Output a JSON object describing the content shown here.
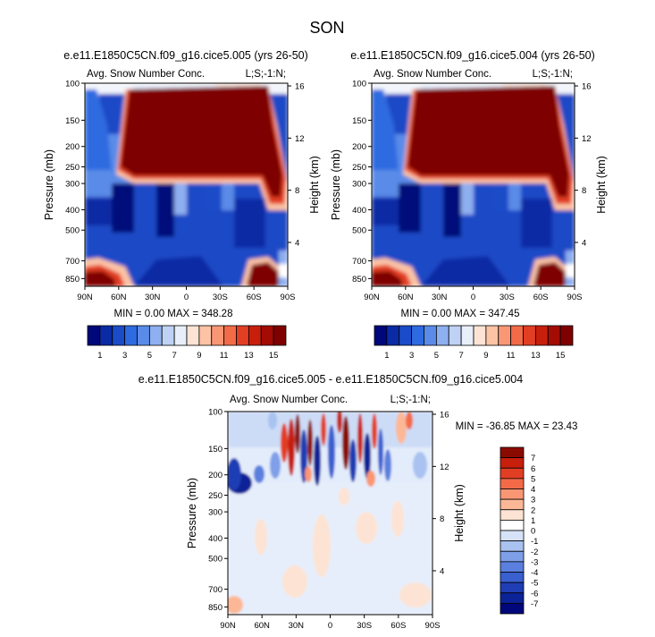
{
  "figure": {
    "season": "SON",
    "panels": [
      {
        "id": "left",
        "title": "e.e11.E1850C5CN.f09_g16.cice5.005 (yrs 26-50)",
        "left_label": "Avg. Snow Number Conc.",
        "right_label": "L;S;-1:N;",
        "stats": "MIN =   0.00  MAX = 348.28"
      },
      {
        "id": "right",
        "title": "e.e11.E1850C5CN.f09_g16.cice5.004 (yrs 26-50)",
        "left_label": "Avg. Snow Number Conc.",
        "right_label": "L;S;-1:N;",
        "stats": "MIN =   0.00  MAX = 347.45"
      },
      {
        "id": "diff",
        "title": "e.e11.E1850C5CN.f09_g16.cice5.005 - e.e11.E1850C5CN.f09_g16.cice5.004",
        "left_label": "Avg. Snow Number Conc.",
        "right_label": "L;S;-1:N;",
        "stats": "MIN = -36.85  MAX =  23.43"
      }
    ]
  },
  "chart_data": [
    {
      "type": "heatmap",
      "title": "e.e11.E1850C5CN.f09_g16.cice5.005 (yrs 26-50)",
      "xlabel": "",
      "ylabel": "Pressure (mb)",
      "y2label": "Height (km)",
      "x_ticks": [
        "90N",
        "60N",
        "30N",
        "0",
        "30S",
        "60S",
        "90S"
      ],
      "x_tick_values": [
        90,
        60,
        30,
        0,
        -30,
        -60,
        -90
      ],
      "y_ticks": [
        100,
        150,
        200,
        250,
        300,
        400,
        500,
        700,
        850
      ],
      "ylim": [
        100,
        925
      ],
      "y2_ticks": [
        16,
        12,
        8,
        4
      ],
      "min": 0.0,
      "max": 348.28,
      "colorbar": {
        "orientation": "horizontal",
        "labels": [
          "1",
          "3",
          "5",
          "7",
          "9",
          "11",
          "13",
          "15"
        ],
        "colors": [
          "#00077a",
          "#0b2ba5",
          "#1a4bc8",
          "#2e6ae0",
          "#5a8be8",
          "#8eaff0",
          "#bfd2f5",
          "#e8effb",
          "#fde3d3",
          "#fcc3a5",
          "#f99775",
          "#f26a48",
          "#e23e24",
          "#c81f0d",
          "#a30c04",
          "#7f0000"
        ]
      }
    },
    {
      "type": "heatmap",
      "title": "e.e11.E1850C5CN.f09_g16.cice5.004 (yrs 26-50)",
      "xlabel": "",
      "ylabel": "Pressure (mb)",
      "y2label": "Height (km)",
      "x_ticks": [
        "90N",
        "60N",
        "30N",
        "0",
        "30S",
        "60S",
        "90S"
      ],
      "x_tick_values": [
        90,
        60,
        30,
        0,
        -30,
        -60,
        -90
      ],
      "y_ticks": [
        100,
        150,
        200,
        250,
        300,
        400,
        500,
        700,
        850
      ],
      "ylim": [
        100,
        925
      ],
      "y2_ticks": [
        16,
        12,
        8,
        4
      ],
      "min": 0.0,
      "max": 347.45,
      "colorbar": {
        "orientation": "horizontal",
        "labels": [
          "1",
          "3",
          "5",
          "7",
          "9",
          "11",
          "13",
          "15"
        ],
        "colors": [
          "#00077a",
          "#0b2ba5",
          "#1a4bc8",
          "#2e6ae0",
          "#5a8be8",
          "#8eaff0",
          "#bfd2f5",
          "#e8effb",
          "#fde3d3",
          "#fcc3a5",
          "#f99775",
          "#f26a48",
          "#e23e24",
          "#c81f0d",
          "#a30c04",
          "#7f0000"
        ]
      }
    },
    {
      "type": "heatmap",
      "title": "e.e11.E1850C5CN.f09_g16.cice5.005 - e.e11.E1850C5CN.f09_g16.cice5.004",
      "xlabel": "",
      "ylabel": "Pressure (mb)",
      "y2label": "Height (km)",
      "x_ticks": [
        "90N",
        "60N",
        "30N",
        "0",
        "30S",
        "60S",
        "90S"
      ],
      "x_tick_values": [
        90,
        60,
        30,
        0,
        -30,
        -60,
        -90
      ],
      "y_ticks": [
        100,
        150,
        200,
        250,
        300,
        400,
        500,
        700,
        850
      ],
      "ylim": [
        100,
        925
      ],
      "y2_ticks": [
        16,
        12,
        8,
        4
      ],
      "min": -36.85,
      "max": 23.43,
      "colorbar": {
        "orientation": "vertical",
        "labels": [
          "7",
          "6",
          "5",
          "4",
          "3",
          "2",
          "1",
          "0",
          "-1",
          "-2",
          "-3",
          "-4",
          "-5",
          "-6",
          "-7"
        ],
        "colors": [
          "#8b0a00",
          "#c81f0d",
          "#e23e24",
          "#f26a48",
          "#f99775",
          "#fcb896",
          "#fde3d3",
          "#ffffff",
          "#d6e2f7",
          "#a9c2f0",
          "#7f9fe8",
          "#5a7fde",
          "#3a5fcf",
          "#1f3db4",
          "#0b2396",
          "#00077a"
        ]
      }
    }
  ]
}
